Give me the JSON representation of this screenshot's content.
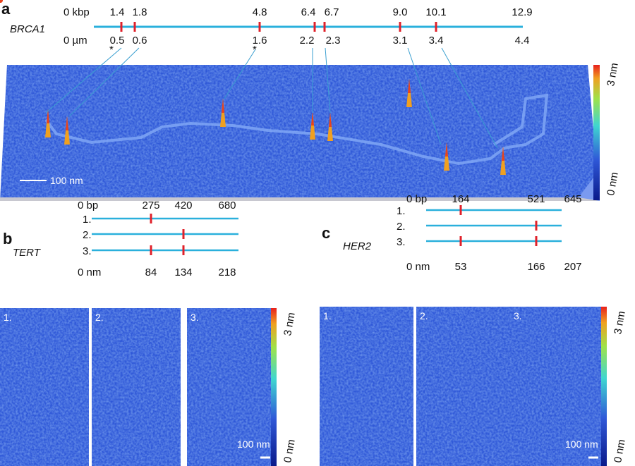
{
  "panel_a": {
    "letter": "a",
    "gene": "BRCA1",
    "top_unit": "0 kbp",
    "bottom_unit": "0 µm",
    "kbp": [
      "1.4",
      "1.8",
      "4.8",
      "6.4",
      "6.7",
      "9.0",
      "10.1",
      "12.9"
    ],
    "um": [
      "0.5",
      "0.6",
      "1.6",
      "2.2",
      "2.3",
      "3.1",
      "3.4",
      "4.4"
    ],
    "asterisk": "*",
    "scale_bar": "100 nm",
    "colorbar_max": "3 nm",
    "colorbar_min": "0 nm"
  },
  "panel_b": {
    "letter": "b",
    "gene": "TERT",
    "top_unit": "0 bp",
    "bottom_unit": "0 nm",
    "bp": [
      "275",
      "420",
      "680"
    ],
    "nm": [
      "84",
      "134",
      "218"
    ],
    "rows": [
      "1.",
      "2.",
      "3."
    ],
    "images": [
      "1.",
      "2.",
      "3."
    ],
    "scale_bar": "100 nm",
    "colorbar_max": "3 nm",
    "colorbar_min": "0 nm"
  },
  "panel_c": {
    "letter": "c",
    "gene": "HER2",
    "top_unit": "0 bp",
    "bottom_unit": "0 nm",
    "bp": [
      "164",
      "521",
      "645"
    ],
    "nm": [
      "53",
      "166",
      "207"
    ],
    "rows": [
      "1.",
      "2.",
      "3."
    ],
    "images": [
      "1.",
      "2.",
      "3."
    ],
    "scale_bar": "100 nm",
    "colorbar_max": "3 nm",
    "colorbar_min": "0 nm"
  },
  "colors": {
    "dna_line": "#2ab0dc",
    "marker": "#e0202a",
    "afm_bg": "#2f58d8",
    "strand": "#6fe08a",
    "peak": "#e8421c"
  }
}
